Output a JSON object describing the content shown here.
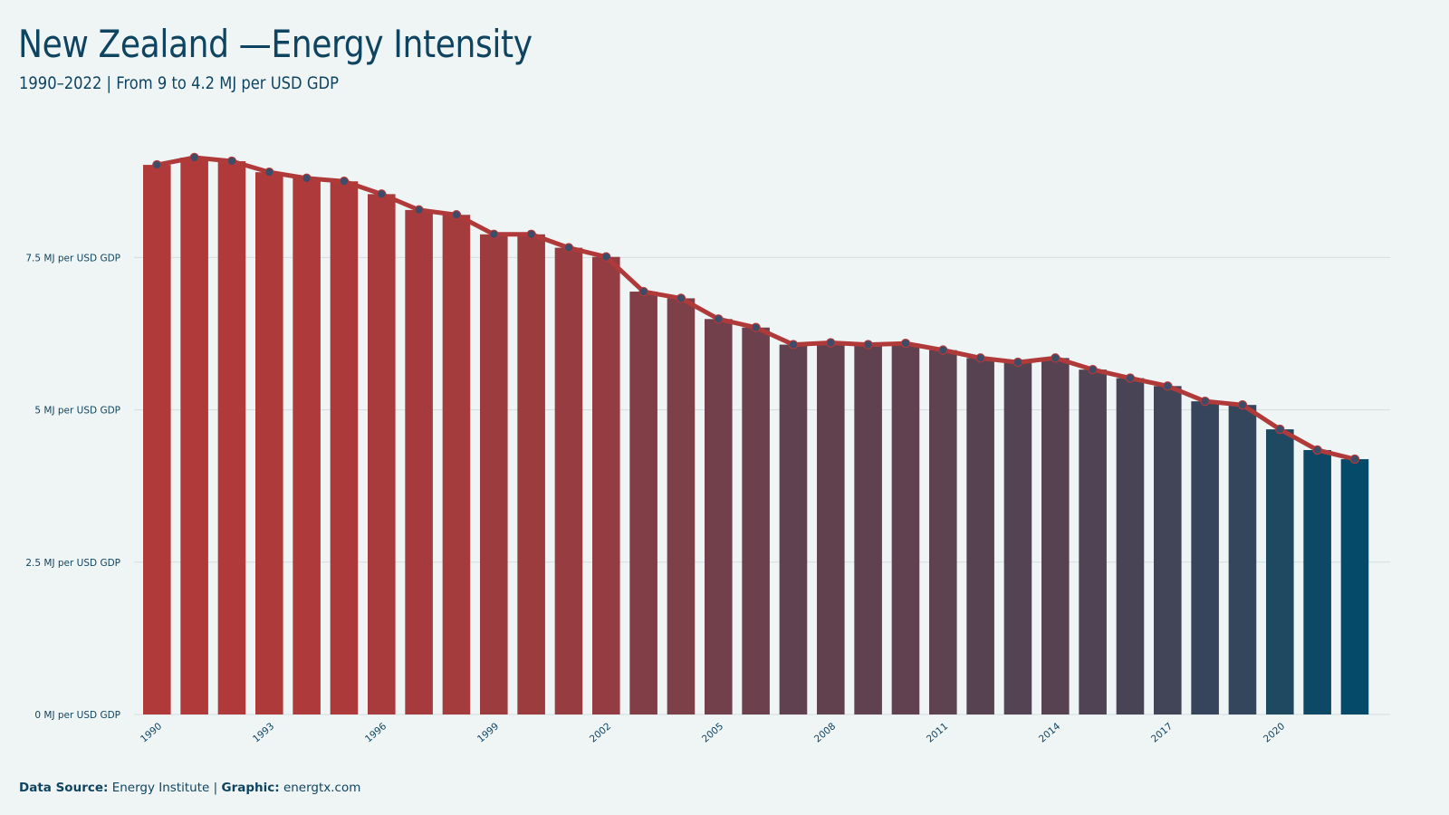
{
  "title": "New Zealand —Energy Intensity",
  "subtitle": "1990–2022 | From 9 to 4.2 MJ per USD GDP",
  "footer": {
    "source_label": "Data Source:",
    "source_value": "Energy Institute",
    "separator": "|",
    "graphic_label": "Graphic:",
    "graphic_value": "energtx.com"
  },
  "colors": {
    "background": "#eff5f5",
    "text": "#0f4461",
    "bar_start": "#b03a3a",
    "bar_end": "#054a68",
    "line": "#b03a3a",
    "marker_fill": "#3d4c68",
    "grid": "#d5dde0"
  },
  "chart_data": {
    "type": "bar",
    "title": "New Zealand —Energy Intensity",
    "subtitle": "1990–2022 | From 9 to 4.2 MJ per USD GDP",
    "xlabel": "",
    "ylabel": "",
    "unit": "MJ per USD GDP",
    "categories": [
      1990,
      1991,
      1992,
      1993,
      1994,
      1995,
      1996,
      1997,
      1998,
      1999,
      2000,
      2001,
      2002,
      2003,
      2004,
      2005,
      2006,
      2007,
      2008,
      2009,
      2010,
      2011,
      2012,
      2013,
      2014,
      2015,
      2016,
      2017,
      2018,
      2019,
      2020,
      2021,
      2022
    ],
    "values": [
      9.02,
      9.14,
      9.08,
      8.9,
      8.8,
      8.75,
      8.54,
      8.28,
      8.2,
      7.88,
      7.88,
      7.66,
      7.51,
      6.94,
      6.83,
      6.49,
      6.35,
      6.07,
      6.1,
      6.07,
      6.09,
      5.98,
      5.85,
      5.78,
      5.85,
      5.66,
      5.52,
      5.39,
      5.14,
      5.08,
      4.68,
      4.34,
      4.19
    ],
    "overlay_line": true,
    "ylim": [
      0,
      9.14
    ],
    "yticks": [
      0,
      2.5,
      5,
      7.5
    ],
    "ytick_labels": [
      "0 MJ per USD GDP",
      "2.5 MJ per USD GDP",
      "5 MJ per USD GDP",
      "7.5 MJ per USD GDP"
    ],
    "xtick_labels": [
      "1990",
      "1993",
      "1996",
      "1999",
      "2002",
      "2005",
      "2008",
      "2011",
      "2014",
      "2017",
      "2020"
    ],
    "grid": true,
    "legend": "none"
  }
}
